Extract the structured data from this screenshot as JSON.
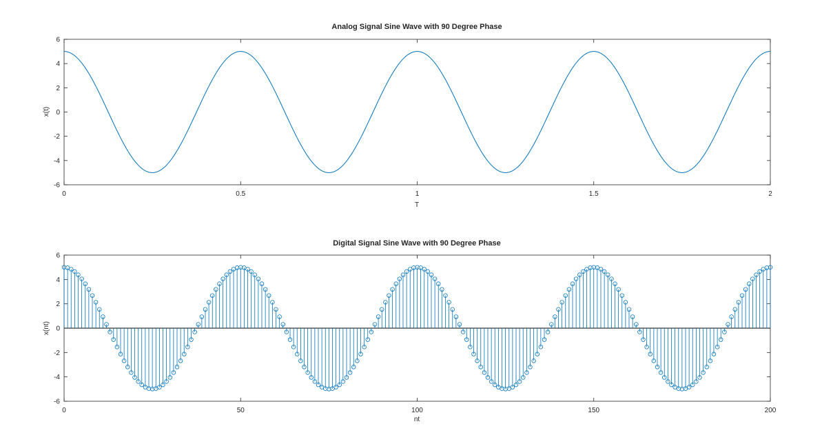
{
  "chart_data": [
    {
      "type": "line",
      "title": "Analog Signal Sine Wave with 90 Degree Phase",
      "xlabel": "T",
      "ylabel": "x(t)",
      "xlim": [
        0,
        2
      ],
      "ylim": [
        -6,
        6
      ],
      "xticks": [
        0,
        0.5,
        1,
        1.5,
        2
      ],
      "xtick_labels": [
        "0",
        "0.5",
        "1",
        "1.5",
        "2"
      ],
      "yticks": [
        -6,
        -4,
        -2,
        0,
        2,
        4,
        6
      ],
      "ytick_labels": [
        "-6",
        "-4",
        "-2",
        "0",
        "2",
        "4",
        "6"
      ],
      "grid": false,
      "series": [
        {
          "function": "x(t) = 5*sin(2*pi*2*t + pi/2)",
          "amplitude": 5,
          "frequency_hz": 2,
          "phase_deg": 90,
          "t_start": 0,
          "t_end": 2,
          "color": "#0072bd"
        }
      ]
    },
    {
      "type": "stem",
      "title": "Digital Signal Sine Wave with 90 Degree Phase",
      "xlabel": "nt",
      "ylabel": "x(nt)",
      "xlim": [
        0,
        200
      ],
      "ylim": [
        -6,
        6
      ],
      "xticks": [
        0,
        50,
        100,
        150,
        200
      ],
      "xtick_labels": [
        "0",
        "50",
        "100",
        "150",
        "200"
      ],
      "yticks": [
        -6,
        -4,
        -2,
        0,
        2,
        4,
        6
      ],
      "ytick_labels": [
        "-6",
        "-4",
        "-2",
        "0",
        "2",
        "4",
        "6"
      ],
      "grid": false,
      "series": [
        {
          "function": "x(n) = 5*cos(2*pi*n/50)",
          "amplitude": 5,
          "period_samples": 50,
          "phase_deg": 90,
          "n_start": 0,
          "n_end": 200,
          "n_step": 1,
          "color": "#0072bd"
        }
      ]
    }
  ]
}
